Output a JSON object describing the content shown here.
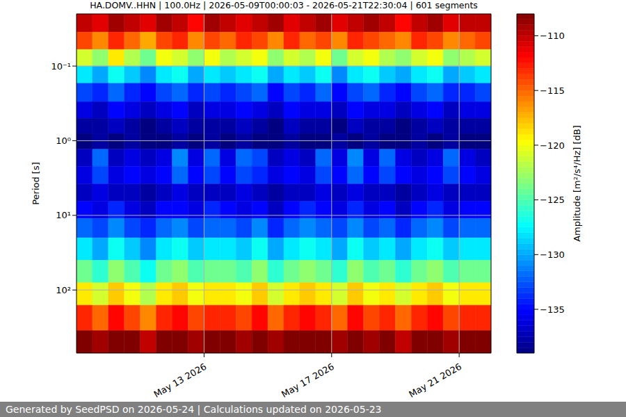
{
  "chart_data": {
    "type": "heatmap",
    "title": "HA.DOMV..HHN | 100.0Hz | 2026-05-09T00:00:03 - 2026-05-21T22:30:04 | 601 segments",
    "y_label": "Period [s]",
    "colorbar_label": "Amplitude [m²/s⁴/Hz] [dB]",
    "footer": "Generated by SeedPSD on 2026-05-24 | Calculations updated on 2026-05-23",
    "log": "y",
    "grid": true,
    "xlim": [
      "2026-05-09T00:00",
      "2026-05-22T00:00"
    ],
    "xticks": [
      {
        "value": "2026-05-13T00:00",
        "label": "May 13 2026"
      },
      {
        "value": "2026-05-17T00:00",
        "label": "May 17 2026"
      },
      {
        "value": "2026-05-21T00:00",
        "label": "May 21 2026"
      }
    ],
    "ylim": [
      0.02,
      700
    ],
    "yticks": [
      {
        "value": 0.1,
        "label": "10⁻¹"
      },
      {
        "value": 1,
        "label": "10⁰"
      },
      {
        "value": 10,
        "label": "10¹"
      },
      {
        "value": 100,
        "label": "10²"
      }
    ],
    "colorbar_range": [
      -139,
      -108
    ],
    "colorbar_ticks": [
      {
        "value": -110,
        "label": "−110"
      },
      {
        "value": -115,
        "label": "−115"
      },
      {
        "value": -120,
        "label": "−120"
      },
      {
        "value": -125,
        "label": "−125"
      },
      {
        "value": -130,
        "label": "−130"
      },
      {
        "value": -135,
        "label": "−135"
      }
    ],
    "x_edges": [
      "2026-05-09T00:00",
      "2026-05-09T12:00",
      "2026-05-10T00:00",
      "2026-05-10T12:00",
      "2026-05-11T00:00",
      "2026-05-11T12:00",
      "2026-05-12T00:00",
      "2026-05-12T12:00",
      "2026-05-13T00:00",
      "2026-05-13T12:00",
      "2026-05-14T00:00",
      "2026-05-14T12:00",
      "2026-05-15T00:00",
      "2026-05-15T12:00",
      "2026-05-16T00:00",
      "2026-05-16T12:00",
      "2026-05-17T00:00",
      "2026-05-17T12:00",
      "2026-05-18T00:00",
      "2026-05-18T12:00",
      "2026-05-19T00:00",
      "2026-05-19T12:00",
      "2026-05-20T00:00",
      "2026-05-20T12:00",
      "2026-05-21T00:00",
      "2026-05-21T12:00",
      "2026-05-22T00:00"
    ],
    "y_edges": [
      0.02,
      0.035,
      0.06,
      0.1,
      0.17,
      0.3,
      0.5,
      0.8,
      1.3,
      2.2,
      3.8,
      6.5,
      11,
      20,
      40,
      80,
      160,
      350,
      700
    ],
    "cells": [
      [
        -110,
        -111,
        -109,
        -110,
        -111,
        -109,
        -110,
        -112,
        -109,
        -110,
        -111,
        -110,
        -109,
        -111,
        -110,
        -109,
        -111,
        -110,
        -109,
        -110,
        -112,
        -110,
        -109,
        -111,
        -110,
        -110
      ],
      [
        -114,
        -116,
        -113,
        -115,
        -117,
        -114,
        -113,
        -116,
        -114,
        -115,
        -113,
        -114,
        -116,
        -113,
        -115,
        -114,
        -116,
        -113,
        -114,
        -115,
        -116,
        -113,
        -114,
        -116,
        -115,
        -114
      ],
      [
        -121,
        -123,
        -119,
        -122,
        -124,
        -120,
        -121,
        -123,
        -120,
        -122,
        -121,
        -120,
        -123,
        -121,
        -122,
        -120,
        -124,
        -121,
        -120,
        -122,
        -123,
        -121,
        -120,
        -123,
        -122,
        -121
      ],
      [
        -128,
        -130,
        -127,
        -129,
        -131,
        -128,
        -127,
        -130,
        -128,
        -129,
        -128,
        -127,
        -130,
        -128,
        -129,
        -127,
        -131,
        -128,
        -127,
        -129,
        -130,
        -128,
        -127,
        -130,
        -129,
        -128
      ],
      [
        -133,
        -134,
        -132,
        -134,
        -135,
        -133,
        -132,
        -134,
        -133,
        -134,
        -133,
        -132,
        -135,
        -133,
        -134,
        -132,
        -135,
        -133,
        -132,
        -134,
        -135,
        -133,
        -132,
        -134,
        -134,
        -133
      ],
      [
        -136,
        -137,
        -135,
        -136,
        -137,
        -136,
        -135,
        -137,
        -136,
        -136,
        -135,
        -136,
        -137,
        -135,
        -136,
        -136,
        -137,
        -135,
        -136,
        -136,
        -137,
        -136,
        -135,
        -137,
        -136,
        -136
      ],
      [
        -138,
        -138,
        -137,
        -138,
        -139,
        -138,
        -137,
        -138,
        -138,
        -138,
        -137,
        -138,
        -139,
        -137,
        -138,
        -138,
        -139,
        -137,
        -138,
        -138,
        -139,
        -138,
        -137,
        -138,
        -138,
        -138
      ],
      [
        -139,
        -138,
        -139,
        -138,
        -139,
        -139,
        -138,
        -139,
        -138,
        -139,
        -138,
        -139,
        -139,
        -138,
        -139,
        -139,
        -138,
        -139,
        -138,
        -139,
        -139,
        -138,
        -139,
        -138,
        -139,
        -139
      ],
      [
        -137,
        -132,
        -137,
        -136,
        -137,
        -136,
        -131,
        -136,
        -132,
        -136,
        -132,
        -133,
        -137,
        -136,
        -137,
        -132,
        -136,
        -131,
        -136,
        -132,
        -136,
        -137,
        -136,
        -132,
        -136,
        -137
      ],
      [
        -136,
        -133,
        -136,
        -135,
        -136,
        -135,
        -132,
        -135,
        -133,
        -135,
        -133,
        -134,
        -136,
        -135,
        -136,
        -133,
        -135,
        -132,
        -135,
        -133,
        -135,
        -136,
        -135,
        -133,
        -135,
        -136
      ],
      [
        -137,
        -136,
        -137,
        -137,
        -138,
        -137,
        -136,
        -137,
        -137,
        -137,
        -136,
        -137,
        -138,
        -137,
        -137,
        -136,
        -137,
        -136,
        -137,
        -137,
        -138,
        -137,
        -136,
        -137,
        -137,
        -137
      ],
      [
        -135,
        -136,
        -134,
        -136,
        -137,
        -135,
        -135,
        -136,
        -134,
        -135,
        -136,
        -135,
        -137,
        -135,
        -134,
        -135,
        -136,
        -134,
        -136,
        -135,
        -137,
        -135,
        -134,
        -136,
        -135,
        -135
      ],
      [
        -132,
        -133,
        -131,
        -133,
        -134,
        -132,
        -131,
        -133,
        -132,
        -132,
        -133,
        -131,
        -134,
        -132,
        -131,
        -132,
        -133,
        -131,
        -133,
        -132,
        -134,
        -132,
        -131,
        -133,
        -132,
        -132
      ],
      [
        -128,
        -130,
        -127,
        -129,
        -131,
        -128,
        -127,
        -129,
        -128,
        -128,
        -129,
        -127,
        -130,
        -128,
        -127,
        -128,
        -130,
        -127,
        -129,
        -128,
        -130,
        -128,
        -127,
        -129,
        -128,
        -128
      ],
      [
        -124,
        -126,
        -123,
        -125,
        -127,
        -124,
        -123,
        -125,
        -124,
        -124,
        -125,
        -123,
        -126,
        -124,
        -123,
        -124,
        -126,
        -123,
        -125,
        -124,
        -126,
        -124,
        -123,
        -125,
        -124,
        -124
      ],
      [
        -119,
        -121,
        -118,
        -120,
        -122,
        -119,
        -118,
        -120,
        -119,
        -119,
        -120,
        -118,
        -121,
        -119,
        -118,
        -119,
        -121,
        -118,
        -120,
        -119,
        -121,
        -119,
        -118,
        -120,
        -119,
        -119
      ],
      [
        -113,
        -115,
        -112,
        -114,
        -116,
        -113,
        -112,
        -114,
        -113,
        -113,
        -114,
        -112,
        -115,
        -113,
        -112,
        -113,
        -115,
        -112,
        -114,
        -113,
        -115,
        -113,
        -112,
        -114,
        -113,
        -113
      ],
      [
        -108,
        -109,
        -108,
        -108,
        -110,
        -108,
        -108,
        -109,
        -108,
        -108,
        -109,
        -108,
        -109,
        -108,
        -108,
        -108,
        -109,
        -108,
        -109,
        -108,
        -110,
        -108,
        -108,
        -109,
        -108,
        -108
      ]
    ]
  }
}
